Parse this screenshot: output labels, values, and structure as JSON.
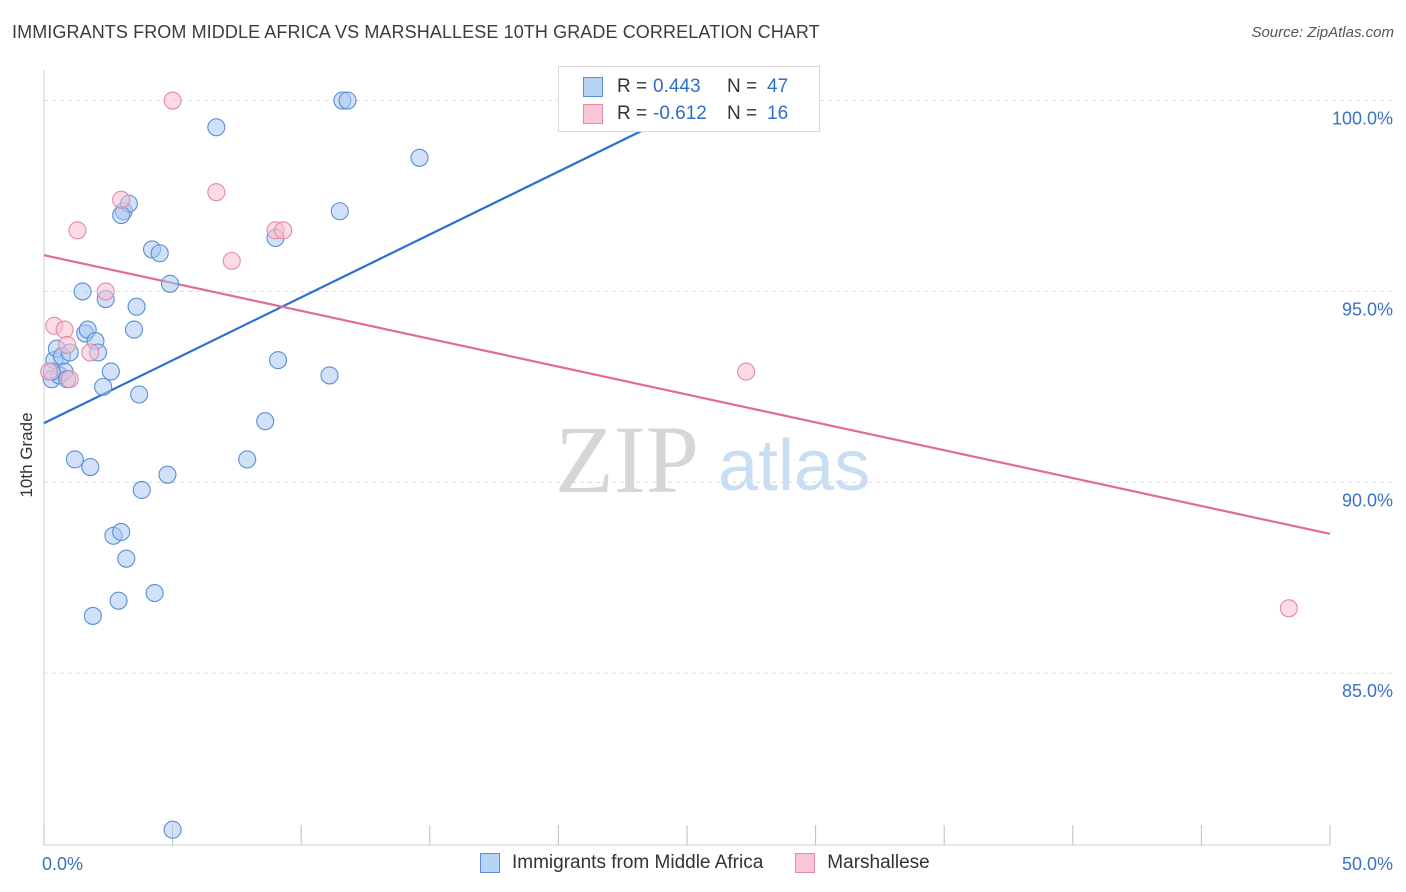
{
  "header": {
    "title": "IMMIGRANTS FROM MIDDLE AFRICA VS MARSHALLESE 10TH GRADE CORRELATION CHART",
    "source": "Source: ZipAtlas.com"
  },
  "legend": {
    "rows": [
      {
        "r_label": "R =",
        "r_value": "0.443",
        "n_label": "N =",
        "n_value": "47"
      },
      {
        "r_label": "R =",
        "r_value": "-0.612",
        "n_label": "N =",
        "n_value": "16"
      }
    ]
  },
  "bottom_legend": {
    "items": [
      {
        "label": "Immigrants from Middle Africa"
      },
      {
        "label": "Marshallese"
      }
    ]
  },
  "watermark": {
    "zip": "ZIP",
    "atlas": "atlas"
  },
  "colors": {
    "blue_fill": "#a9c9f2",
    "blue_stroke": "#5b8fd6",
    "blue_line": "#2b6fd0",
    "pink_fill": "#f7bfd0",
    "pink_stroke": "#e38aa7",
    "pink_line": "#e06c96",
    "tick_text": "#3a72c4",
    "grid": "#dcdcdc"
  },
  "chart_data": {
    "type": "scatter",
    "title": "IMMIGRANTS FROM MIDDLE AFRICA VS MARSHALLESE 10TH GRADE CORRELATION CHART",
    "xlabel": "",
    "ylabel": "10th Grade",
    "xlim": [
      0,
      50
    ],
    "ylim": [
      80.5,
      100.8
    ],
    "x_tick_labels": [
      {
        "value": 0,
        "label": "0.0%"
      },
      {
        "value": 50,
        "label": "50.0%"
      }
    ],
    "y_tick_labels": [
      {
        "value": 100,
        "label": "100.0%"
      },
      {
        "value": 95,
        "label": "95.0%"
      },
      {
        "value": 90,
        "label": "90.0%"
      },
      {
        "value": 85,
        "label": "85.0%"
      }
    ],
    "series": [
      {
        "name": "Immigrants from Middle Africa",
        "color": "#a9c9f2",
        "trend": {
          "x0": 0,
          "y0": 91.55,
          "x1": 25.8,
          "y1": 100.05
        },
        "points": [
          [
            0.3,
            92.7
          ],
          [
            0.4,
            93.2
          ],
          [
            0.5,
            93.5
          ],
          [
            0.6,
            92.8
          ],
          [
            0.7,
            93.3
          ],
          [
            0.8,
            92.9
          ],
          [
            0.9,
            92.7
          ],
          [
            1.0,
            93.4
          ],
          [
            1.2,
            90.6
          ],
          [
            1.5,
            95.0
          ],
          [
            1.6,
            93.9
          ],
          [
            1.7,
            94.0
          ],
          [
            1.8,
            90.4
          ],
          [
            1.9,
            86.5
          ],
          [
            2.0,
            93.7
          ],
          [
            2.1,
            93.4
          ],
          [
            2.3,
            92.5
          ],
          [
            2.4,
            94.8
          ],
          [
            2.6,
            92.9
          ],
          [
            2.7,
            88.6
          ],
          [
            2.9,
            86.9
          ],
          [
            3.0,
            88.7
          ],
          [
            3.1,
            97.1
          ],
          [
            3.2,
            88.0
          ],
          [
            3.3,
            97.3
          ],
          [
            3.5,
            94.0
          ],
          [
            3.6,
            94.6
          ],
          [
            3.7,
            92.3
          ],
          [
            3.8,
            89.8
          ],
          [
            4.2,
            96.1
          ],
          [
            4.3,
            87.1
          ],
          [
            4.5,
            96.0
          ],
          [
            4.8,
            90.2
          ],
          [
            4.9,
            95.2
          ],
          [
            5.0,
            80.9
          ],
          [
            6.7,
            99.3
          ],
          [
            7.9,
            90.6
          ],
          [
            8.6,
            91.6
          ],
          [
            9.0,
            96.4
          ],
          [
            9.1,
            93.2
          ],
          [
            11.1,
            92.8
          ],
          [
            11.5,
            97.1
          ],
          [
            11.6,
            100.0
          ],
          [
            11.8,
            100.0
          ],
          [
            14.6,
            98.5
          ],
          [
            0.3,
            92.9
          ],
          [
            3.0,
            97.0
          ]
        ]
      },
      {
        "name": "Marshallese",
        "color": "#f7bfd0",
        "trend": {
          "x0": 0,
          "y0": 95.95,
          "x1": 50,
          "y1": 88.65
        },
        "points": [
          [
            0.2,
            92.9
          ],
          [
            0.4,
            94.1
          ],
          [
            0.8,
            94.0
          ],
          [
            0.9,
            93.6
          ],
          [
            1.0,
            92.7
          ],
          [
            1.3,
            96.6
          ],
          [
            1.8,
            93.4
          ],
          [
            2.4,
            95.0
          ],
          [
            3.0,
            97.4
          ],
          [
            5.0,
            100.0
          ],
          [
            6.7,
            97.6
          ],
          [
            7.3,
            95.8
          ],
          [
            9.0,
            96.6
          ],
          [
            9.3,
            96.6
          ],
          [
            27.3,
            92.9
          ],
          [
            48.4,
            86.7
          ]
        ]
      }
    ]
  }
}
